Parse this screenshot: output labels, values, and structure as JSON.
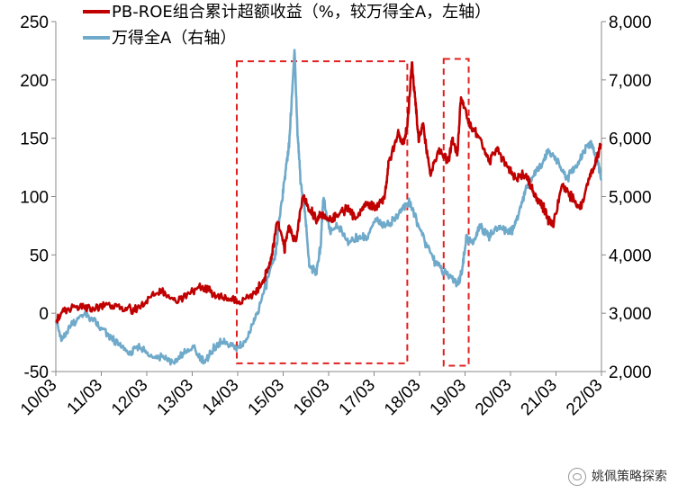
{
  "chart_data": {
    "type": "line",
    "x_ticks": [
      "10/03",
      "11/03",
      "12/03",
      "13/03",
      "14/03",
      "15/03",
      "16/03",
      "17/03",
      "18/03",
      "19/03",
      "20/03",
      "21/03",
      "22/03"
    ],
    "left_axis": {
      "ticks": [
        -50,
        0,
        50,
        100,
        150,
        200,
        250
      ],
      "ylim": [
        -50,
        250
      ]
    },
    "right_axis": {
      "ticks": [
        "2,000",
        "3,000",
        "4,000",
        "5,000",
        "6,000",
        "7,000",
        "8,000"
      ],
      "ylim": [
        2000,
        8000
      ]
    },
    "legend_placement": "top-left",
    "colors": {
      "red": "#C00000",
      "blue": "#6FAACA",
      "box": "#E02020"
    },
    "series": [
      {
        "name": "PB-ROE组合累计超额收益（%，较万得全A，左轴）",
        "axis": "left",
        "x": [
          2010.17,
          2010.4,
          2010.7,
          2011.0,
          2011.3,
          2011.6,
          2011.9,
          2012.2,
          2012.5,
          2012.8,
          2013.1,
          2013.4,
          2013.7,
          2014.0,
          2014.2,
          2014.5,
          2014.7,
          2014.9,
          2015.05,
          2015.2,
          2015.3,
          2015.45,
          2015.6,
          2015.75,
          2015.9,
          2016.0,
          2016.2,
          2016.4,
          2016.6,
          2016.8,
          2017.0,
          2017.2,
          2017.4,
          2017.5,
          2017.7,
          2017.8,
          2017.9,
          2018.0,
          2018.08,
          2018.15,
          2018.25,
          2018.4,
          2018.6,
          2018.8,
          2018.9,
          2019.0,
          2019.08,
          2019.2,
          2019.3,
          2019.5,
          2019.7,
          2019.9,
          2020.1,
          2020.3,
          2020.5,
          2020.7,
          2020.9,
          2021.0,
          2021.1,
          2021.3,
          2021.5,
          2021.7,
          2021.9,
          2022.05,
          2022.17
        ],
        "y": [
          -5,
          2,
          5,
          3,
          8,
          5,
          2,
          12,
          20,
          10,
          18,
          22,
          15,
          12,
          10,
          15,
          25,
          45,
          80,
          55,
          75,
          60,
          100,
          90,
          80,
          85,
          80,
          85,
          90,
          80,
          95,
          90,
          100,
          130,
          155,
          145,
          160,
          215,
          180,
          150,
          160,
          120,
          140,
          130,
          150,
          135,
          185,
          170,
          160,
          150,
          130,
          140,
          125,
          115,
          120,
          100,
          90,
          80,
          75,
          110,
          100,
          90,
          115,
          130,
          145
        ]
      },
      {
        "name": "万得全A（右轴）",
        "axis": "right",
        "x": [
          2010.17,
          2010.3,
          2010.5,
          2010.8,
          2010.95,
          2011.2,
          2011.5,
          2011.8,
          2012.0,
          2012.2,
          2012.5,
          2012.8,
          2012.95,
          2013.2,
          2013.45,
          2013.6,
          2013.8,
          2014.0,
          2014.2,
          2014.4,
          2014.6,
          2014.8,
          2015.0,
          2015.1,
          2015.2,
          2015.3,
          2015.42,
          2015.48,
          2015.55,
          2015.65,
          2015.75,
          2015.9,
          2016.0,
          2016.05,
          2016.2,
          2016.4,
          2016.6,
          2016.8,
          2017.0,
          2017.2,
          2017.4,
          2017.6,
          2017.8,
          2017.95,
          2018.1,
          2018.3,
          2018.5,
          2018.7,
          2018.9,
          2019.0,
          2019.1,
          2019.2,
          2019.35,
          2019.5,
          2019.7,
          2019.9,
          2020.1,
          2020.2,
          2020.3,
          2020.5,
          2020.7,
          2020.9,
          2021.0,
          2021.2,
          2021.4,
          2021.6,
          2021.8,
          2021.95,
          2022.05,
          2022.17
        ],
        "y": [
          2900,
          2500,
          2800,
          3000,
          2900,
          2700,
          2500,
          2300,
          2450,
          2300,
          2250,
          2150,
          2300,
          2400,
          2150,
          2350,
          2500,
          2450,
          2400,
          2600,
          3000,
          3500,
          4000,
          4700,
          5300,
          5900,
          7500,
          6200,
          5300,
          4700,
          3800,
          3700,
          4200,
          5000,
          4400,
          4500,
          4200,
          4300,
          4300,
          4600,
          4500,
          4600,
          4800,
          4900,
          4600,
          4200,
          3900,
          3700,
          3600,
          3500,
          3700,
          4300,
          4200,
          4500,
          4300,
          4500,
          4400,
          4400,
          4600,
          5100,
          5400,
          5600,
          5800,
          5600,
          5300,
          5500,
          5800,
          5900,
          5700,
          5300
        ]
      }
    ],
    "highlight_boxes": [
      {
        "x0": 2014.15,
        "x1": 2017.9,
        "y0": -43,
        "y1": 216
      },
      {
        "x0": 2018.7,
        "x1": 2019.25,
        "y0": -45,
        "y1": 218
      }
    ]
  },
  "watermark": {
    "icon": "wechat-icon",
    "text": "姚佩策略探索"
  }
}
